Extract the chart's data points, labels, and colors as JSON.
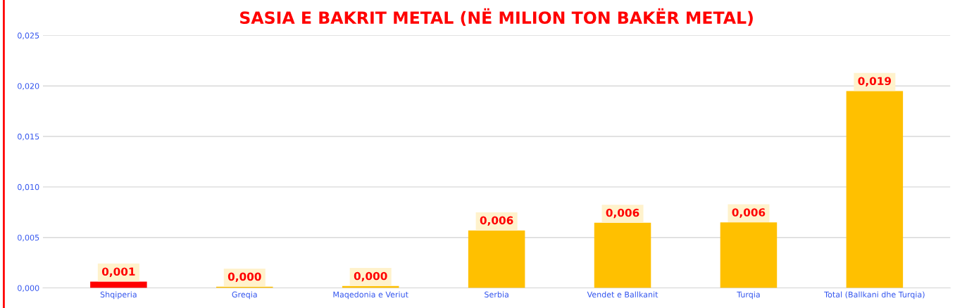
{
  "chart_data": {
    "type": "bar",
    "title": "SASIA E BAKRIT METAL (NË MILION TON BAKËR METAL)",
    "categories": [
      "Shqiperia",
      "Greqia",
      "Maqedonia e Veriut",
      "Serbia",
      "Vendet e Ballkanit",
      "Turqia",
      "Total (Ballkani dhe Turqia)"
    ],
    "values": [
      0.00063,
      0.00013,
      0.00019,
      0.0057,
      0.00645,
      0.00649,
      0.01949
    ],
    "colors": [
      "#ff0000",
      "#ffc000",
      "#ffc000",
      "#ffc000",
      "#ffc000",
      "#ffc000",
      "#ffc000"
    ],
    "value_labels": [
      "0,001",
      "0,000",
      "0,000",
      "0,006",
      "0,006",
      "0,006",
      "0,019"
    ],
    "ylim": [
      0,
      0.025
    ],
    "yticks": [
      {
        "value": 0,
        "label": "0,000"
      },
      {
        "value": 0.005,
        "label": "0,005"
      },
      {
        "value": 0.01,
        "label": "0,010"
      },
      {
        "value": 0.015,
        "label": "0,015"
      },
      {
        "value": 0.02,
        "label": "0,020"
      },
      {
        "value": 0.025,
        "label": "0,025"
      }
    ],
    "grid": "y",
    "legend": false
  }
}
